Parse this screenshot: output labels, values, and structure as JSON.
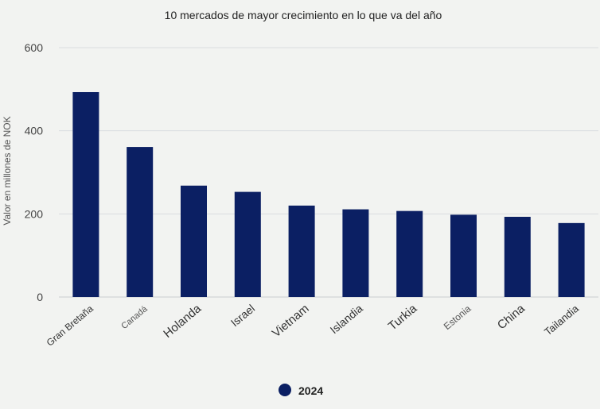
{
  "chart_data": {
    "type": "bar",
    "title": "10 mercados de mayor crecimiento en lo que va del año",
    "xlabel": "",
    "ylabel": "Valor en millones de NOK",
    "categories": [
      "Gran Bretaña",
      "Canadá",
      "Holanda",
      "Israel",
      "Vietnam",
      "Islandia",
      "Turkia",
      "Estonia",
      "China",
      "Tailandia"
    ],
    "series": [
      {
        "name": "2024",
        "values": [
          493,
          361,
          268,
          253,
          220,
          211,
          207,
          198,
          193,
          178
        ],
        "color": "#0b1f63"
      }
    ],
    "ylim": [
      0,
      600
    ],
    "yticks": [
      0,
      200,
      400,
      600
    ],
    "grid": true,
    "legend_position": "bottom-center",
    "colors": {
      "bar": "#0b1f63",
      "grid": "#d9dcdf",
      "text": "#333333",
      "background": "#f2f3f1"
    }
  }
}
